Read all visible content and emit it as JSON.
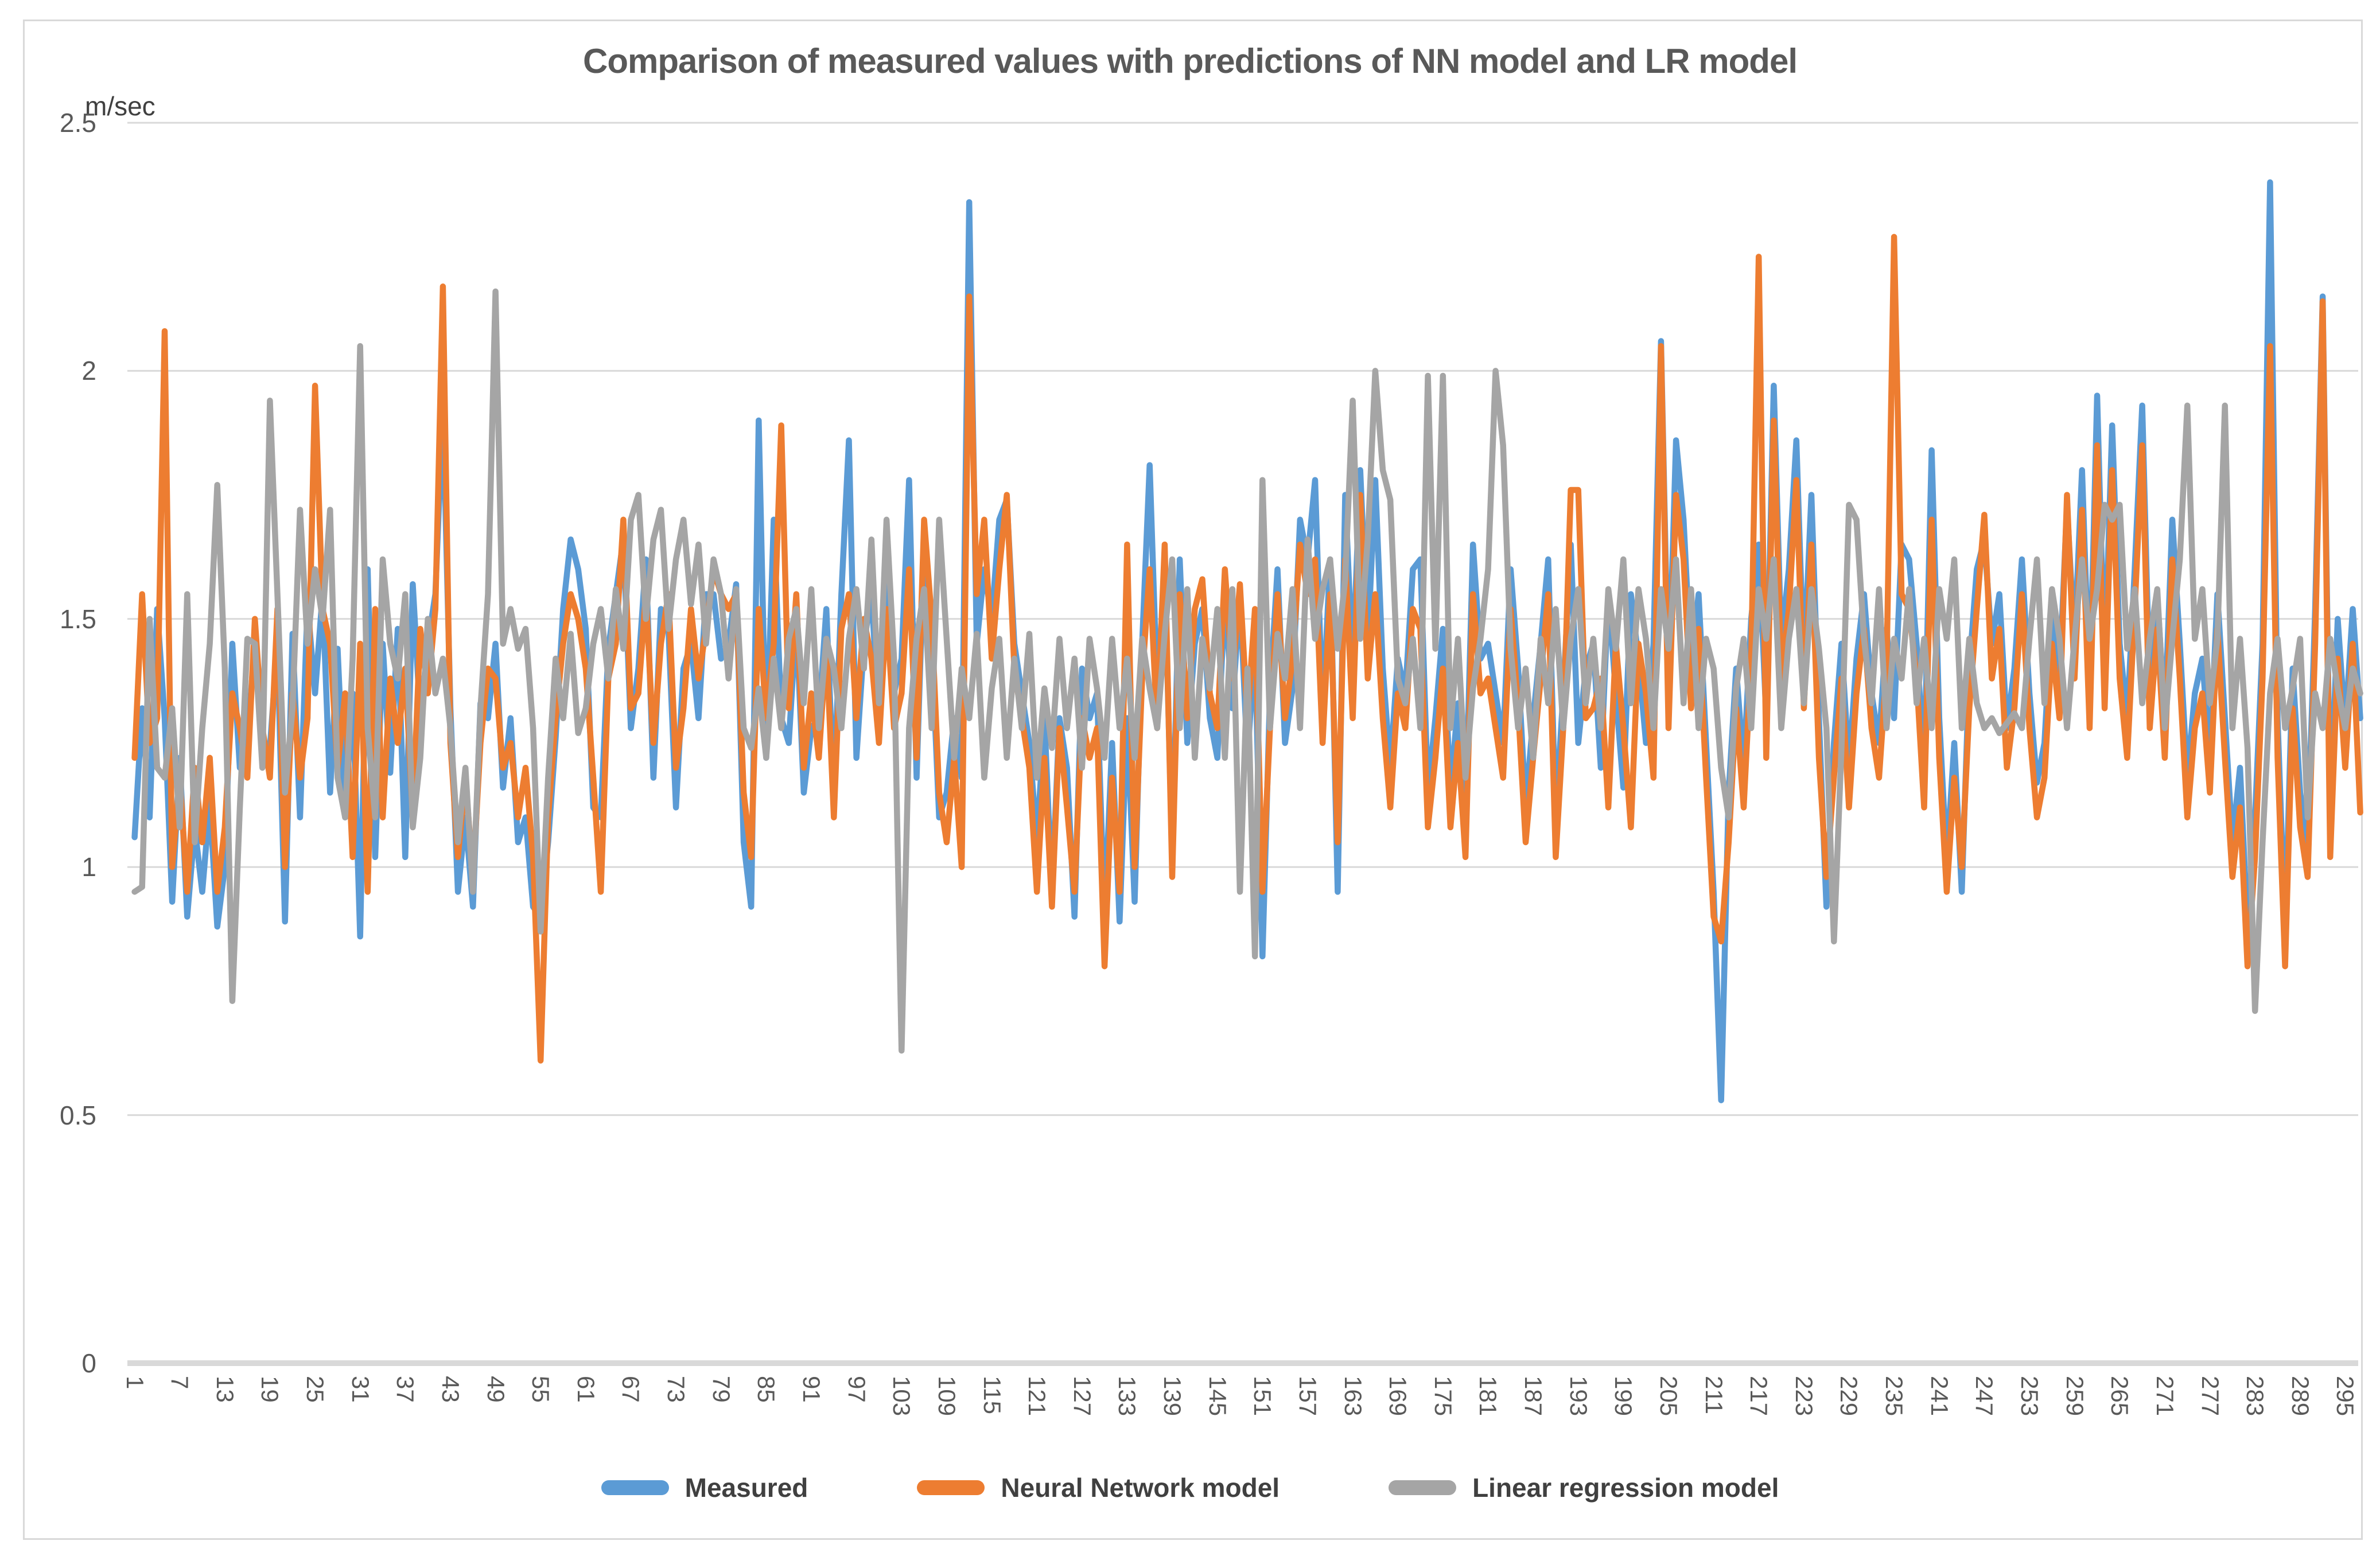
{
  "chart_data": {
    "type": "line",
    "title": "Comparison of measured values with predictions of NN model and LR model",
    "ylabel": "m/sec",
    "xlabel": "",
    "n_points": 297,
    "x_tick_step": 6,
    "x_tick_labels": [
      "1",
      "7",
      "13",
      "19",
      "25",
      "31",
      "37",
      "43",
      "49",
      "55",
      "61",
      "67",
      "73",
      "79",
      "85",
      "91",
      "97",
      "103",
      "109",
      "115",
      "121",
      "127",
      "133",
      "139",
      "145",
      "151",
      "157",
      "163",
      "169",
      "175",
      "181",
      "187",
      "193",
      "199",
      "205",
      "211",
      "217",
      "223",
      "229",
      "235",
      "241",
      "247",
      "253",
      "259",
      "265",
      "271",
      "277",
      "283",
      "289",
      "295"
    ],
    "ylim": [
      0,
      2.5
    ],
    "y_ticks": [
      0,
      0.5,
      1,
      1.5,
      2,
      2.5
    ],
    "y_tick_labels": [
      "0",
      "0.5",
      "1",
      "1.5",
      "2",
      "2.5"
    ],
    "grid": true,
    "legend_position": "bottom",
    "colors": {
      "measured": "#5B9BD5",
      "neural_network": "#ED7D31",
      "linear_regression": "#A5A5A5",
      "gridline": "#D9D9D9",
      "axis_line": "#D9D9D9",
      "tick_text": "#595959",
      "title_text": "#595959"
    },
    "series": [
      {
        "name": "Measured",
        "color": "#5B9BD5",
        "values": [
          1.06,
          1.32,
          1.1,
          1.52,
          1.3,
          0.93,
          1.22,
          0.9,
          1.08,
          0.95,
          1.13,
          0.88,
          1.0,
          1.45,
          1.2,
          1.26,
          1.45,
          1.22,
          1.24,
          1.45,
          0.89,
          1.47,
          1.1,
          1.53,
          1.35,
          1.55,
          1.15,
          1.44,
          1.1,
          1.35,
          0.86,
          1.6,
          1.02,
          1.45,
          1.19,
          1.48,
          1.02,
          1.57,
          1.3,
          1.45,
          1.55,
          1.93,
          1.32,
          0.95,
          1.1,
          0.92,
          1.33,
          1.3,
          1.45,
          1.16,
          1.3,
          1.05,
          1.1,
          0.92,
          0.9,
          1.05,
          1.26,
          1.52,
          1.66,
          1.6,
          1.48,
          1.12,
          1.1,
          1.44,
          1.55,
          1.66,
          1.28,
          1.4,
          1.62,
          1.18,
          1.52,
          1.48,
          1.12,
          1.4,
          1.45,
          1.3,
          1.55,
          1.55,
          1.42,
          1.45,
          1.57,
          1.05,
          0.92,
          1.9,
          1.22,
          1.7,
          1.3,
          1.25,
          1.5,
          1.15,
          1.28,
          1.3,
          1.52,
          1.15,
          1.55,
          1.86,
          1.22,
          1.45,
          1.55,
          1.3,
          1.58,
          1.35,
          1.42,
          1.78,
          1.18,
          1.65,
          1.45,
          1.1,
          1.15,
          1.3,
          1.18,
          2.34,
          1.45,
          1.6,
          1.5,
          1.7,
          1.74,
          1.45,
          1.35,
          1.25,
          1.05,
          1.3,
          0.95,
          1.3,
          1.2,
          0.9,
          1.4,
          1.3,
          1.35,
          0.9,
          1.25,
          0.89,
          1.3,
          0.93,
          1.45,
          1.81,
          1.35,
          1.6,
          1.02,
          1.62,
          1.25,
          1.45,
          1.52,
          1.3,
          1.22,
          1.55,
          1.32,
          1.55,
          1.22,
          1.45,
          0.82,
          1.35,
          1.6,
          1.25,
          1.36,
          1.7,
          1.62,
          1.78,
          1.3,
          1.62,
          0.95,
          1.75,
          1.4,
          1.8,
          1.45,
          1.78,
          1.4,
          1.2,
          1.42,
          1.35,
          1.6,
          1.62,
          1.15,
          1.3,
          1.48,
          1.15,
          1.33,
          1.1,
          1.65,
          1.42,
          1.45,
          1.35,
          1.25,
          1.6,
          1.4,
          1.12,
          1.3,
          1.45,
          1.62,
          1.1,
          1.35,
          1.65,
          1.25,
          1.4,
          1.45,
          1.2,
          1.55,
          1.35,
          1.16,
          1.55,
          1.42,
          1.25,
          1.45,
          2.06,
          1.35,
          1.86,
          1.7,
          1.4,
          1.55,
          1.25,
          0.95,
          0.53,
          1.15,
          1.4,
          1.2,
          1.5,
          1.65,
          1.3,
          1.97,
          1.45,
          1.6,
          1.86,
          1.4,
          1.75,
          1.3,
          0.92,
          1.25,
          1.45,
          1.2,
          1.42,
          1.55,
          1.35,
          1.25,
          1.48,
          1.3,
          1.65,
          1.62,
          1.45,
          1.2,
          1.84,
          1.3,
          1.01,
          1.25,
          0.95,
          1.4,
          1.6,
          1.66,
          1.45,
          1.55,
          1.28,
          1.4,
          1.62,
          1.35,
          1.17,
          1.25,
          1.52,
          1.38,
          1.73,
          1.45,
          1.8,
          1.35,
          1.95,
          1.4,
          1.89,
          1.45,
          1.3,
          1.6,
          1.93,
          1.35,
          1.55,
          1.3,
          1.7,
          1.45,
          1.18,
          1.35,
          1.42,
          1.22,
          1.55,
          1.3,
          1.05,
          1.2,
          0.88,
          1.1,
          1.45,
          2.38,
          1.3,
          0.87,
          1.4,
          1.15,
          1.05,
          1.52,
          2.15,
          1.1,
          1.5,
          1.28,
          1.52,
          1.3
        ]
      },
      {
        "name": "Neural Network model",
        "color": "#ED7D31",
        "values": [
          1.22,
          1.55,
          1.25,
          1.3,
          2.08,
          1.0,
          1.18,
          0.95,
          1.2,
          1.05,
          1.22,
          0.95,
          1.08,
          1.35,
          1.28,
          1.18,
          1.5,
          1.28,
          1.18,
          1.52,
          1.0,
          1.35,
          1.18,
          1.3,
          1.97,
          1.52,
          1.45,
          1.2,
          1.35,
          1.02,
          1.45,
          0.95,
          1.52,
          1.1,
          1.38,
          1.25,
          1.4,
          1.1,
          1.48,
          1.35,
          1.52,
          2.17,
          1.25,
          1.02,
          1.18,
          0.98,
          1.25,
          1.4,
          1.38,
          1.2,
          1.25,
          1.1,
          1.2,
          1.02,
          0.61,
          1.1,
          1.3,
          1.45,
          1.55,
          1.5,
          1.4,
          1.18,
          0.95,
          1.38,
          1.45,
          1.7,
          1.32,
          1.35,
          1.55,
          1.25,
          1.45,
          1.55,
          1.2,
          1.32,
          1.52,
          1.38,
          1.48,
          1.6,
          1.55,
          1.52,
          1.55,
          1.15,
          1.02,
          1.52,
          1.3,
          1.45,
          1.89,
          1.32,
          1.55,
          1.2,
          1.35,
          1.22,
          1.45,
          1.1,
          1.48,
          1.55,
          1.3,
          1.5,
          1.42,
          1.25,
          1.52,
          1.28,
          1.35,
          1.6,
          1.22,
          1.7,
          1.5,
          1.15,
          1.05,
          1.22,
          1.0,
          2.15,
          1.55,
          1.7,
          1.42,
          1.6,
          1.75,
          1.4,
          1.3,
          1.2,
          0.95,
          1.22,
          0.92,
          1.28,
          1.12,
          0.95,
          1.3,
          1.22,
          1.28,
          0.8,
          1.18,
          0.95,
          1.65,
          1.0,
          1.38,
          1.6,
          1.28,
          1.65,
          0.98,
          1.55,
          1.3,
          1.52,
          1.58,
          1.35,
          1.28,
          1.6,
          1.38,
          1.57,
          1.3,
          1.52,
          0.95,
          1.28,
          1.55,
          1.3,
          1.42,
          1.65,
          1.55,
          1.62,
          1.25,
          1.55,
          1.05,
          1.62,
          1.3,
          1.75,
          1.38,
          1.55,
          1.3,
          1.12,
          1.35,
          1.28,
          1.52,
          1.48,
          1.08,
          1.22,
          1.4,
          1.08,
          1.25,
          1.02,
          1.55,
          1.35,
          1.38,
          1.28,
          1.18,
          1.52,
          1.32,
          1.05,
          1.22,
          1.38,
          1.55,
          1.02,
          1.28,
          1.76,
          1.76,
          1.3,
          1.32,
          1.38,
          1.12,
          1.45,
          1.28,
          1.08,
          1.45,
          1.35,
          1.18,
          2.05,
          1.28,
          1.75,
          1.62,
          1.32,
          1.48,
          1.18,
          0.9,
          0.85,
          1.05,
          1.32,
          1.12,
          1.42,
          2.23,
          1.22,
          1.9,
          1.38,
          1.52,
          1.78,
          1.32,
          1.65,
          1.22,
          0.98,
          1.18,
          1.38,
          1.12,
          1.35,
          1.48,
          1.28,
          1.18,
          1.4,
          2.27,
          1.55,
          1.52,
          1.38,
          1.12,
          1.7,
          1.22,
          0.95,
          1.18,
          1.0,
          1.32,
          1.52,
          1.71,
          1.38,
          1.48,
          1.2,
          1.32,
          1.55,
          1.28,
          1.1,
          1.18,
          1.45,
          1.3,
          1.75,
          1.38,
          1.72,
          1.28,
          1.85,
          1.32,
          1.8,
          1.38,
          1.22,
          1.52,
          1.85,
          1.28,
          1.48,
          1.22,
          1.62,
          1.38,
          1.1,
          1.28,
          1.35,
          1.15,
          1.48,
          1.22,
          0.98,
          1.12,
          0.8,
          1.02,
          1.38,
          2.05,
          1.22,
          0.8,
          1.32,
          1.08,
          0.98,
          1.45,
          2.14,
          1.02,
          1.42,
          1.2,
          1.45,
          1.11
        ]
      },
      {
        "name": "Linear regression model",
        "color": "#A5A5A5",
        "values": [
          0.95,
          0.96,
          1.5,
          1.2,
          1.18,
          1.32,
          1.08,
          1.55,
          1.05,
          1.28,
          1.45,
          1.77,
          1.4,
          0.73,
          1.12,
          1.46,
          1.45,
          1.2,
          1.94,
          1.55,
          1.15,
          1.32,
          1.72,
          1.45,
          1.6,
          1.5,
          1.72,
          1.18,
          1.1,
          1.42,
          2.05,
          1.28,
          1.1,
          1.62,
          1.45,
          1.38,
          1.55,
          1.08,
          1.22,
          1.5,
          1.35,
          1.42,
          1.28,
          1.05,
          1.2,
          0.95,
          1.32,
          1.55,
          2.16,
          1.45,
          1.52,
          1.44,
          1.48,
          1.28,
          0.87,
          1.18,
          1.42,
          1.3,
          1.47,
          1.27,
          1.32,
          1.45,
          1.52,
          1.38,
          1.56,
          1.44,
          1.7,
          1.75,
          1.5,
          1.66,
          1.72,
          1.48,
          1.62,
          1.7,
          1.53,
          1.65,
          1.45,
          1.62,
          1.55,
          1.38,
          1.56,
          1.28,
          1.24,
          1.36,
          1.22,
          1.42,
          1.28,
          1.46,
          1.52,
          1.33,
          1.56,
          1.28,
          1.46,
          1.4,
          1.28,
          1.46,
          1.56,
          1.4,
          1.66,
          1.33,
          1.7,
          1.42,
          0.63,
          1.28,
          1.46,
          1.56,
          1.28,
          1.7,
          1.46,
          1.22,
          1.4,
          1.3,
          1.47,
          1.18,
          1.36,
          1.46,
          1.22,
          1.42,
          1.28,
          1.47,
          1.18,
          1.36,
          1.24,
          1.46,
          1.28,
          1.42,
          1.2,
          1.46,
          1.36,
          1.22,
          1.46,
          1.28,
          1.42,
          1.22,
          1.46,
          1.36,
          1.28,
          1.47,
          1.62,
          1.28,
          1.56,
          1.22,
          1.46,
          1.36,
          1.52,
          1.22,
          1.56,
          0.95,
          1.4,
          0.82,
          1.78,
          1.28,
          1.47,
          1.38,
          1.56,
          1.28,
          1.66,
          1.46,
          1.56,
          1.62,
          1.44,
          1.58,
          1.94,
          1.46,
          1.66,
          2.0,
          1.8,
          1.74,
          1.38,
          1.33,
          1.46,
          1.28,
          1.99,
          1.44,
          1.99,
          1.28,
          1.46,
          1.18,
          1.36,
          1.46,
          1.6,
          2.0,
          1.85,
          1.44,
          1.28,
          1.4,
          1.22,
          1.46,
          1.33,
          1.52,
          1.28,
          1.46,
          1.56,
          1.33,
          1.46,
          1.28,
          1.56,
          1.44,
          1.62,
          1.33,
          1.56,
          1.46,
          1.28,
          1.56,
          1.44,
          1.62,
          1.33,
          1.56,
          1.28,
          1.46,
          1.4,
          1.2,
          1.1,
          1.36,
          1.46,
          1.28,
          1.56,
          1.46,
          1.62,
          1.28,
          1.46,
          1.56,
          1.33,
          1.56,
          1.44,
          1.28,
          0.85,
          1.24,
          1.73,
          1.7,
          1.46,
          1.33,
          1.56,
          1.28,
          1.46,
          1.38,
          1.56,
          1.33,
          1.46,
          1.28,
          1.56,
          1.46,
          1.62,
          1.28,
          1.46,
          1.33,
          1.28,
          1.3,
          1.27,
          1.29,
          1.31,
          1.28,
          1.46,
          1.62,
          1.33,
          1.56,
          1.46,
          1.28,
          1.46,
          1.62,
          1.46,
          1.56,
          1.73,
          1.7,
          1.73,
          1.44,
          1.56,
          1.33,
          1.46,
          1.56,
          1.28,
          1.46,
          1.62,
          1.93,
          1.46,
          1.56,
          1.33,
          1.46,
          1.93,
          1.28,
          1.46,
          1.24,
          0.71,
          1.05,
          1.35,
          1.46,
          1.28,
          1.36,
          1.46,
          1.1,
          1.35,
          1.28,
          1.46,
          1.36,
          1.28,
          1.4,
          1.35
        ]
      }
    ]
  }
}
